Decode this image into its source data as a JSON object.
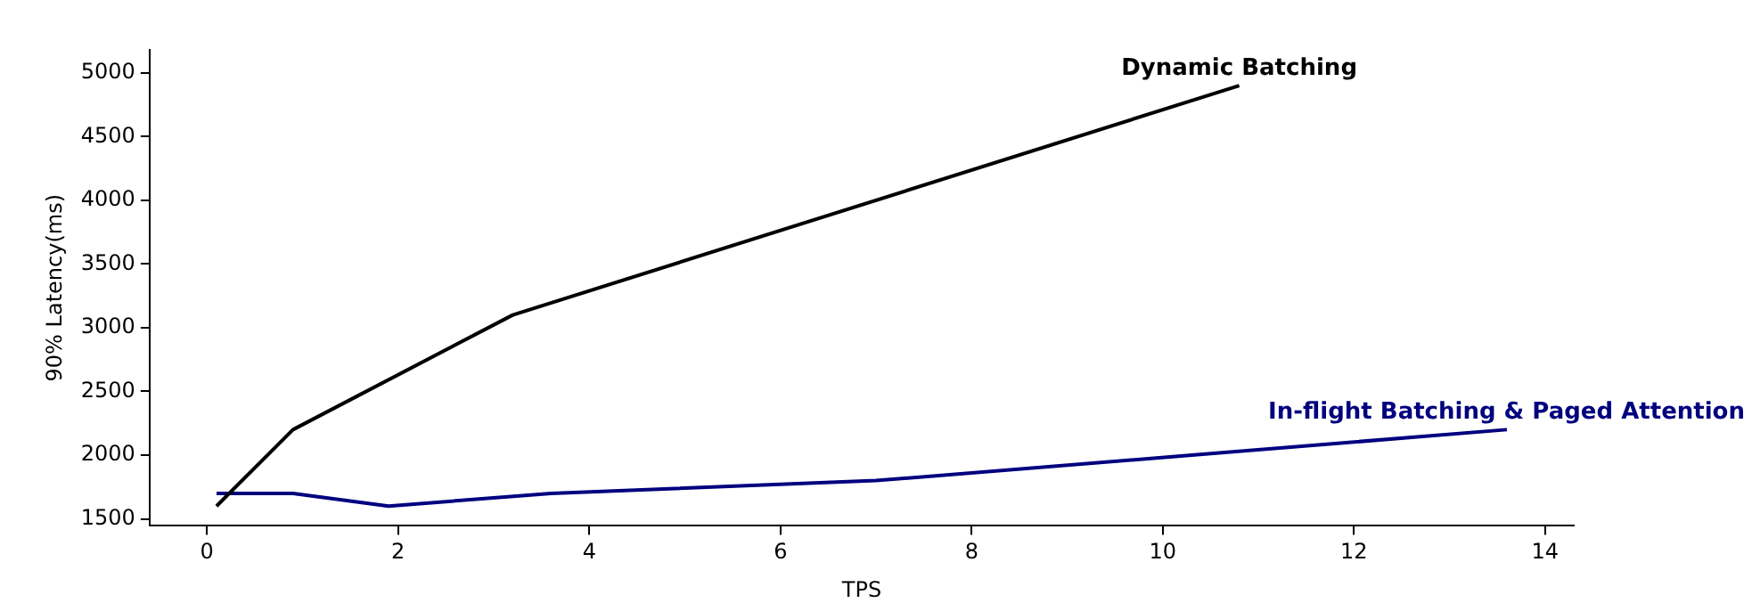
{
  "chart_data": {
    "type": "line",
    "xlabel": "TPS",
    "ylabel": "90% Latency(ms)",
    "xlim": [
      -0.6,
      14.3
    ],
    "xticks": [
      0,
      2,
      4,
      6,
      8,
      10,
      12,
      14
    ],
    "ylim": [
      1445,
      5180
    ],
    "yticks": [
      1500,
      2000,
      2500,
      3000,
      3500,
      4000,
      4500,
      5000
    ],
    "grid": false,
    "legend": false,
    "marker": "none",
    "line_style": "solid",
    "series": [
      {
        "name": "Dynamic Batching",
        "color": "#000000",
        "x": [
          0.1,
          0.9,
          3.2,
          10.8
        ],
        "values": [
          1600,
          2200,
          3100,
          4900
        ]
      },
      {
        "name": "In-flight Batching & Paged Attention",
        "color": "#00007f",
        "x": [
          0.1,
          0.9,
          1.9,
          3.6,
          7.0,
          13.6
        ],
        "values": [
          1700,
          1700,
          1600,
          1700,
          1800,
          2200
        ]
      }
    ]
  }
}
